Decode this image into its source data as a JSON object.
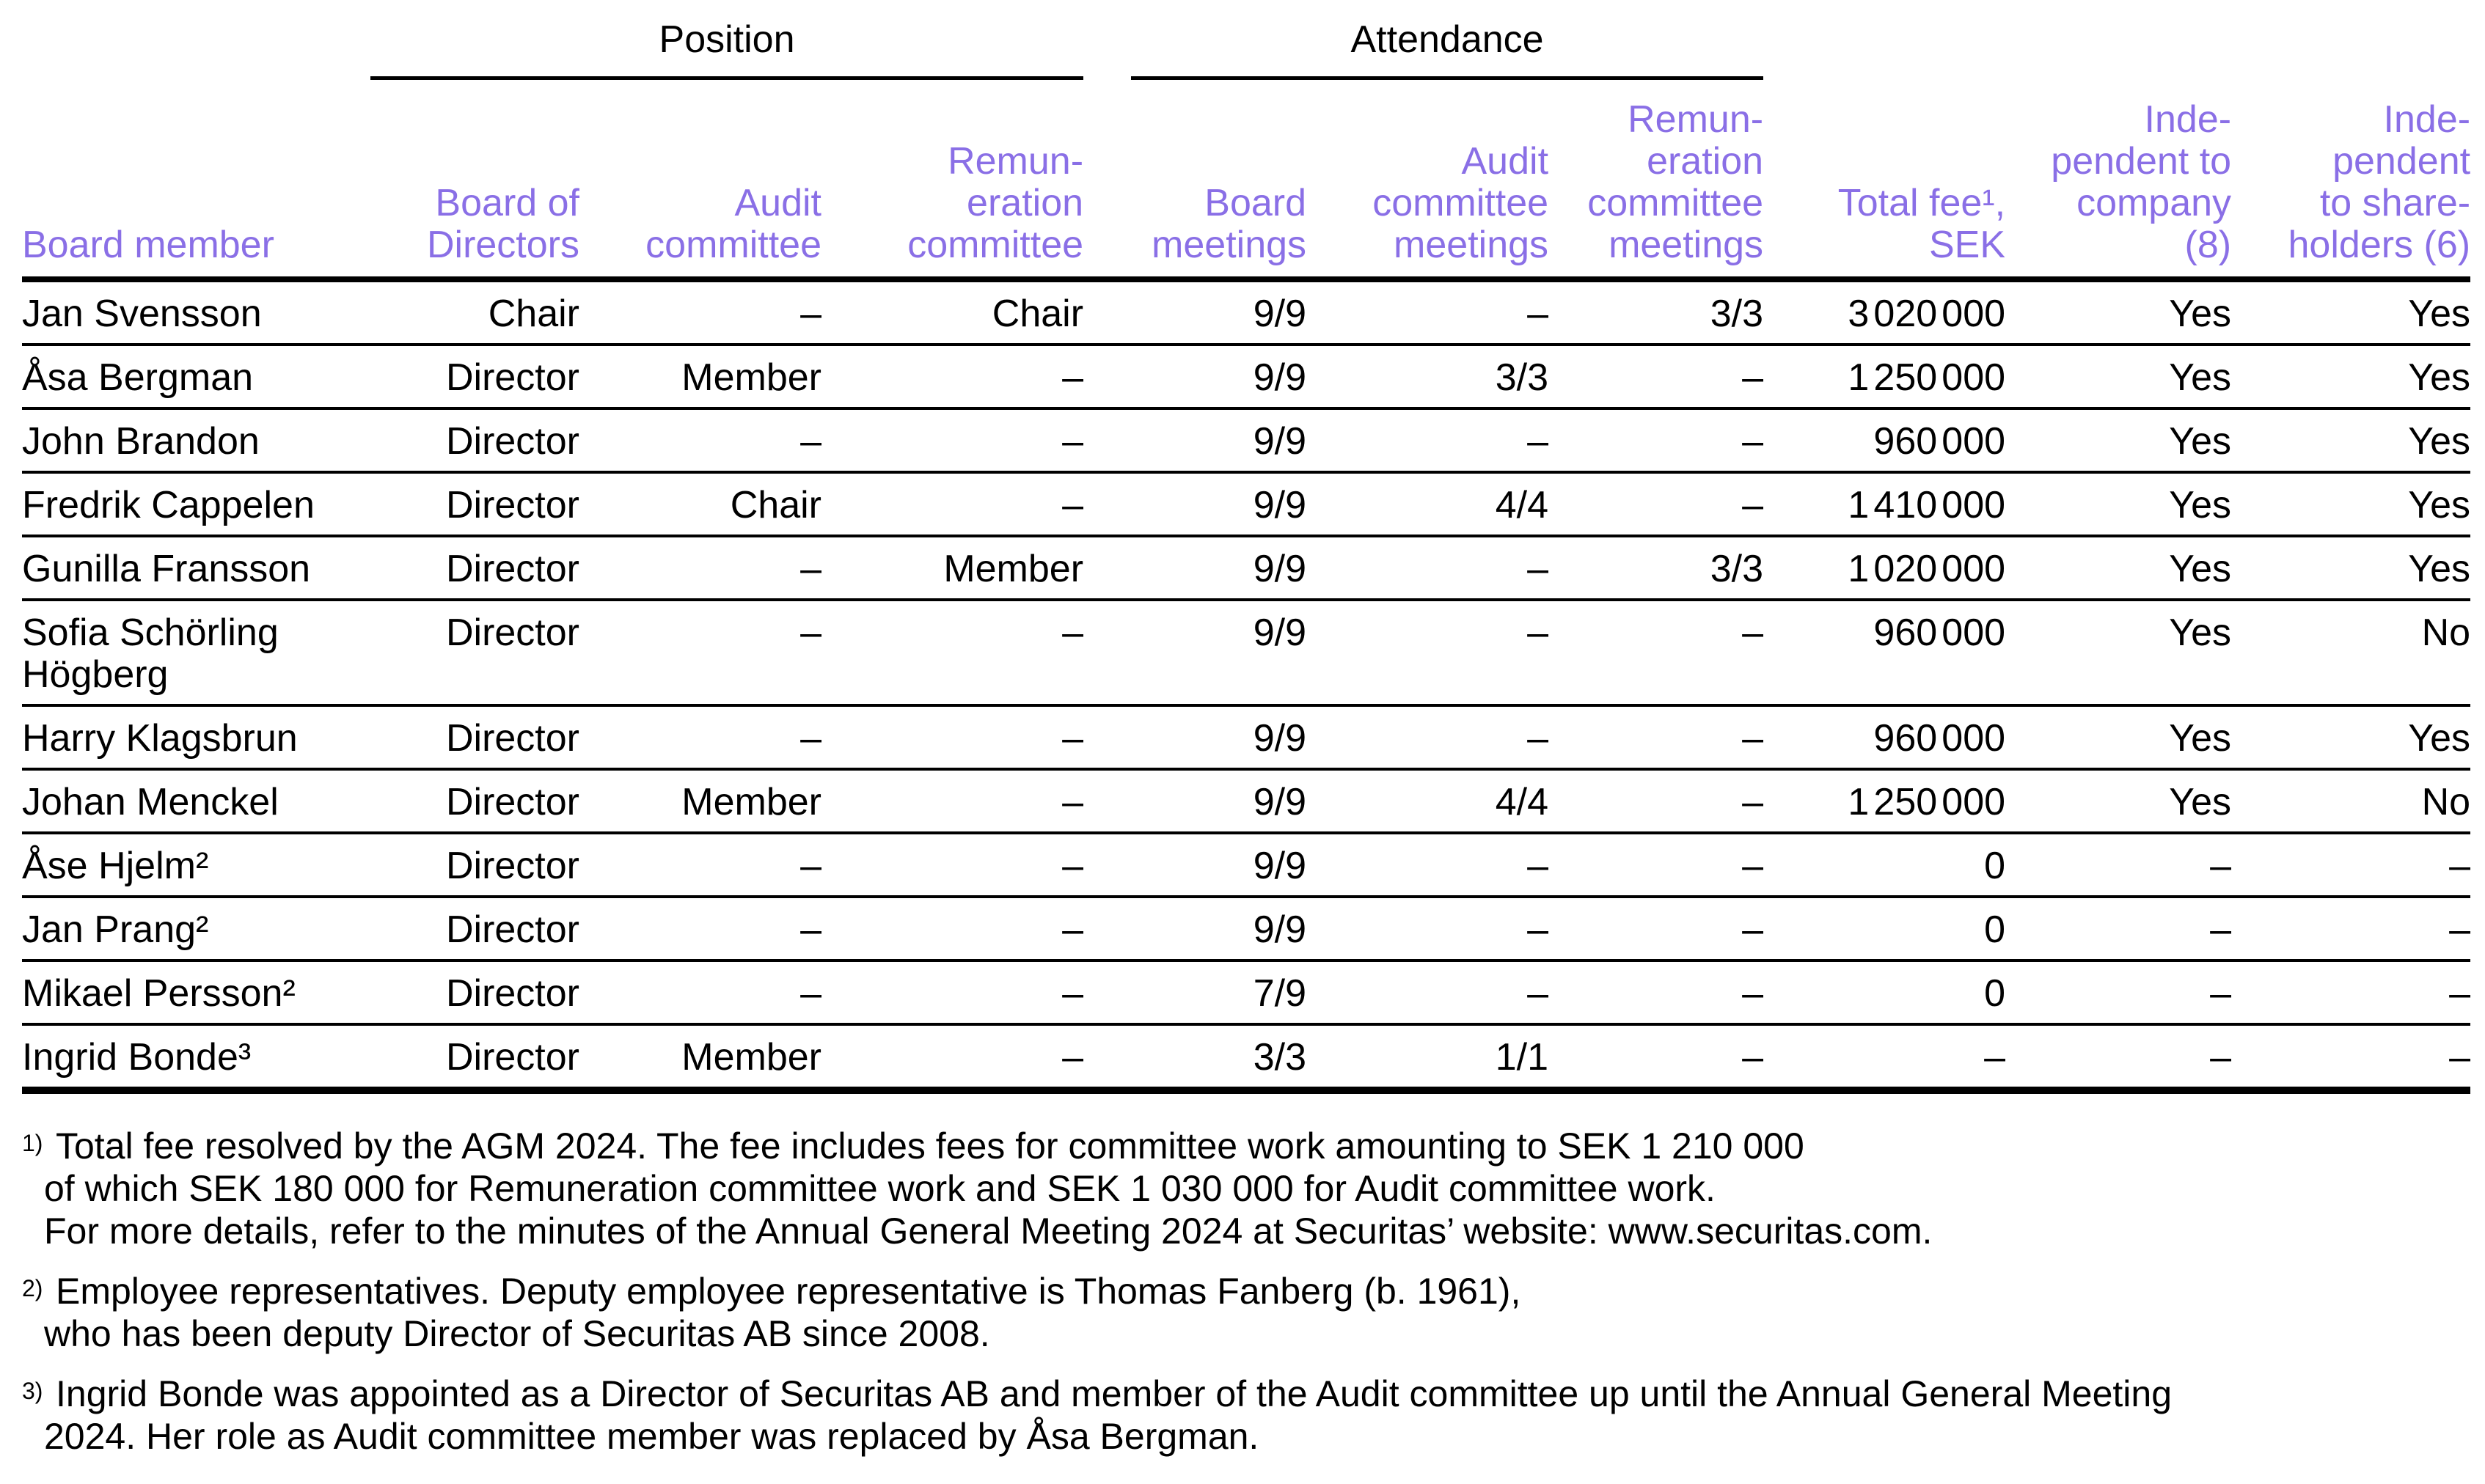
{
  "colors": {
    "header_purple": "#8a6fe6",
    "text": "#000000",
    "background": "#ffffff"
  },
  "table": {
    "group_headers": [
      {
        "label": "Position"
      },
      {
        "label": "Attendance"
      }
    ],
    "columns": [
      {
        "lines": [
          "Board member"
        ]
      },
      {
        "lines": [
          "Board of",
          "Directors"
        ]
      },
      {
        "lines": [
          "Audit",
          "committee"
        ]
      },
      {
        "lines": [
          "Remun-",
          "eration",
          "committee"
        ]
      },
      {
        "lines": [
          "Board",
          "meetings"
        ]
      },
      {
        "lines": [
          "Audit",
          "committee",
          "meetings"
        ]
      },
      {
        "lines": [
          "Remun-",
          "eration",
          "committee",
          "meetings"
        ]
      },
      {
        "lines": [
          "Total fee¹,",
          "SEK"
        ]
      },
      {
        "lines": [
          "Inde-",
          "pendent to",
          "company",
          "(8)"
        ]
      },
      {
        "lines": [
          "Inde-",
          "pendent",
          "to share-",
          "holders (6)"
        ]
      }
    ],
    "rows": [
      [
        "Jan Svensson",
        "Chair",
        "–",
        "Chair",
        "9/9",
        "–",
        "3/3",
        "3 020 000",
        "Yes",
        "Yes"
      ],
      [
        "Åsa Bergman",
        "Director",
        "Member",
        "–",
        "9/9",
        "3/3",
        "–",
        "1 250 000",
        "Yes",
        "Yes"
      ],
      [
        "John Brandon",
        "Director",
        "–",
        "–",
        "9/9",
        "–",
        "–",
        "960 000",
        "Yes",
        "Yes"
      ],
      [
        "Fredrik Cappelen",
        "Director",
        "Chair",
        "–",
        "9/9",
        "4/4",
        "–",
        "1 410 000",
        "Yes",
        "Yes"
      ],
      [
        "Gunilla Fransson",
        "Director",
        "–",
        "Member",
        "9/9",
        "–",
        "3/3",
        "1 020 000",
        "Yes",
        "Yes"
      ],
      [
        "Sofia Schörling Högberg",
        "Director",
        "–",
        "–",
        "9/9",
        "–",
        "–",
        "960 000",
        "Yes",
        "No"
      ],
      [
        "Harry Klagsbrun",
        "Director",
        "–",
        "–",
        "9/9",
        "–",
        "–",
        "960 000",
        "Yes",
        "Yes"
      ],
      [
        "Johan Menckel",
        "Director",
        "Member",
        "–",
        "9/9",
        "4/4",
        "–",
        "1 250 000",
        "Yes",
        "No"
      ],
      [
        "Åse Hjelm²",
        "Director",
        "–",
        "–",
        "9/9",
        "–",
        "–",
        "0",
        "–",
        "–"
      ],
      [
        "Jan Prang²",
        "Director",
        "–",
        "–",
        "9/9",
        "–",
        "–",
        "0",
        "–",
        "–"
      ],
      [
        "Mikael Persson²",
        "Director",
        "–",
        "–",
        "7/9",
        "–",
        "–",
        "0",
        "–",
        "–"
      ],
      [
        "Ingrid Bonde³",
        "Director",
        "Member",
        "–",
        "3/3",
        "1/1",
        "–",
        "–",
        "–",
        "–"
      ]
    ]
  },
  "footnotes": [
    {
      "marker": "1)",
      "lines": [
        "Total fee resolved by the AGM 2024. The fee includes fees for committee work amounting to SEK 1 210 000",
        "of which SEK 180 000 for Remuneration committee work and SEK 1 030 000 for Audit committee work.",
        "For more details, refer to the minutes of the Annual General Meeting 2024 at Securitas’ website: www.securitas.com."
      ]
    },
    {
      "marker": "2)",
      "lines": [
        "Employee representatives. Deputy employee representative is Thomas Fanberg (b. 1961),",
        "who has been deputy Director of Securitas AB since 2008."
      ]
    },
    {
      "marker": "3)",
      "lines": [
        "Ingrid Bonde was appointed as a Director of Securitas AB and member of the Audit committee up until the Annual General Meeting",
        "2024. Her role as Audit committee member was replaced by Åsa Bergman."
      ]
    }
  ]
}
